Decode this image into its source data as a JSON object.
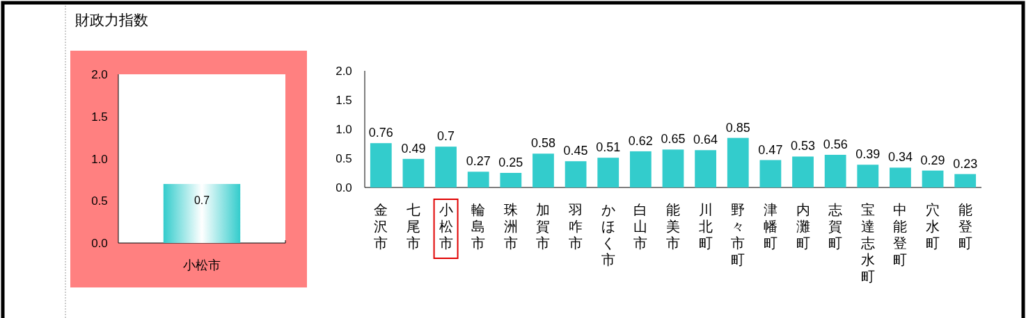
{
  "chart_data": [
    {
      "type": "bar",
      "title": "財政力指数",
      "categories": [
        "小松市"
      ],
      "values": [
        0.7
      ],
      "color": "#33cccc",
      "data_labels": true,
      "ylim": [
        0,
        2
      ],
      "yticks": [
        {
          "value": 0,
          "label": "0.0"
        },
        {
          "value": 0.5,
          "label": "0.5"
        },
        {
          "value": 1,
          "label": "1.0"
        },
        {
          "value": 1.5,
          "label": "1.5"
        },
        {
          "value": 2,
          "label": "2.0"
        }
      ]
    },
    {
      "type": "bar",
      "categories": [
        "金沢市",
        "七尾市",
        "小松市",
        "輪島市",
        "珠洲市",
        "加賀市",
        "羽咋市",
        "かほく市",
        "白山市",
        "能美市",
        "川北町",
        "野々市町",
        "津幡町",
        "内灘町",
        "志賀町",
        "宝達志水町",
        "中能登町",
        "穴水町",
        "能登町"
      ],
      "values": [
        0.76,
        0.49,
        0.7,
        0.27,
        0.25,
        0.58,
        0.45,
        0.51,
        0.62,
        0.65,
        0.64,
        0.85,
        0.47,
        0.53,
        0.56,
        0.39,
        0.34,
        0.29,
        0.23
      ],
      "color": "#33cccc",
      "data_labels": true,
      "ylim": [
        0,
        2
      ],
      "yticks": [
        {
          "value": 0,
          "label": "0.0"
        },
        {
          "value": 0.5,
          "label": "0.5"
        },
        {
          "value": 1,
          "label": "1.0"
        },
        {
          "value": 1.5,
          "label": "1.5"
        },
        {
          "value": 2,
          "label": "2.0"
        }
      ]
    }
  ]
}
